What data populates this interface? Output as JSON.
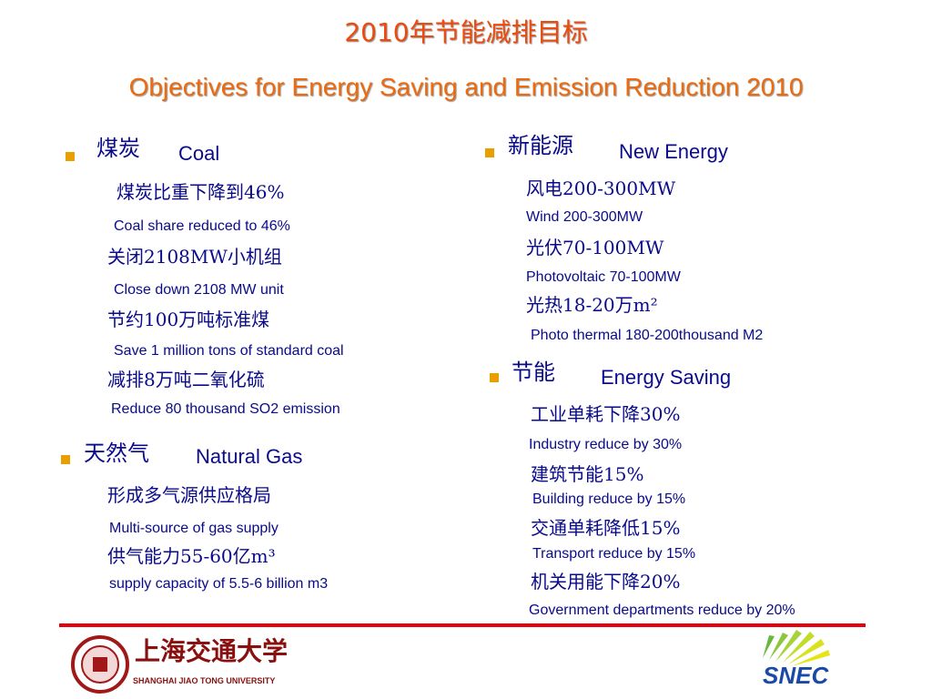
{
  "title": {
    "zh": "2010年节能减排目标",
    "en": "Objectives for Energy Saving and Emission Reduction 2010"
  },
  "sections": [
    {
      "heading_zh": "煤炭",
      "heading_en": "Coal",
      "items": [
        {
          "zh": "煤炭比重下降到46%",
          "en": "Coal share reduced to 46%"
        },
        {
          "zh": "关闭2108MW小机组",
          "en": "Close down 2108 MW unit"
        },
        {
          "zh": "节约100万吨标准煤",
          "en": "Save 1 million tons of standard coal"
        },
        {
          "zh": "减排8万吨二氧化硫",
          "en": "Reduce 80 thousand SO2 emission"
        }
      ]
    },
    {
      "heading_zh": "天然气",
      "heading_en": "Natural Gas",
      "items": [
        {
          "zh": "形成多气源供应格局",
          "en": "Multi-source of gas supply"
        },
        {
          "zh": "供气能力55-60亿m³",
          "en": "supply capacity of 5.5-6 billion m3"
        }
      ]
    },
    {
      "heading_zh": "新能源",
      "heading_en": "New Energy",
      "items": [
        {
          "zh": "风电200-300MW",
          "en": "Wind 200-300MW"
        },
        {
          "zh": "光伏70-100MW",
          "en": "Photovoltaic 70-100MW"
        },
        {
          "zh": "光热18-20万m²",
          "en": "Photo thermal 180-200thousand M2"
        }
      ]
    },
    {
      "heading_zh": "节能",
      "heading_en": "Energy Saving",
      "items": [
        {
          "zh": "工业单耗下降30%",
          "en": "Industry reduce by 30%"
        },
        {
          "zh": "建筑节能15%",
          "en": "Building reduce by 15%"
        },
        {
          "zh": "交通单耗降低15%",
          "en": "Transport reduce by 15%"
        },
        {
          "zh": "机关用能下降20%",
          "en": "Government departments reduce by 20%"
        }
      ]
    }
  ],
  "logos": {
    "sjtu_zh": "上海交通大学",
    "sjtu_en": "SHANGHAI JIAO TONG UNIVERSITY",
    "snec": "SNEC"
  }
}
